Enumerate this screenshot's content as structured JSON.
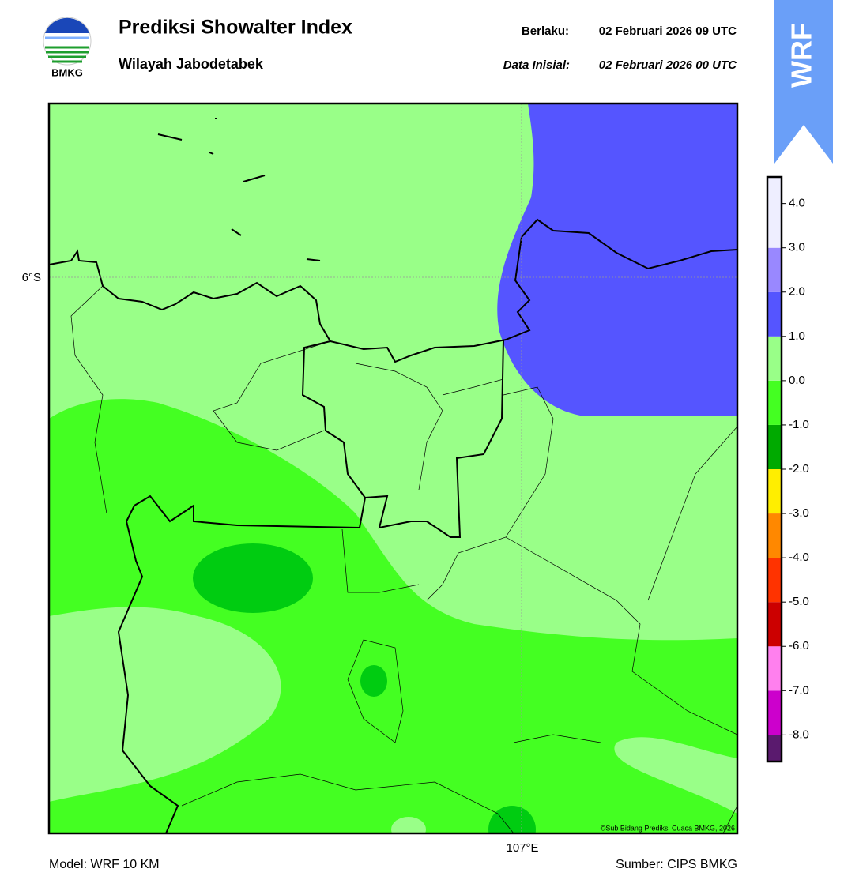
{
  "header": {
    "logo_text": "BMKG",
    "title": "Prediksi Showalter Index",
    "subtitle": "Wilayah Jabodetabek",
    "valid_label": "Berlaku:",
    "valid_time": "02 Februari 2026 09 UTC",
    "init_label": "Data Inisial:",
    "init_time": "02 Februari 2026 00 UTC",
    "badge": "WRF"
  },
  "map": {
    "lat_label": "6°S",
    "lon_label": "107°E",
    "credit": "©Sub Bidang Prediksi Cuaca BMKG, 2026"
  },
  "colorbar": {
    "lim": [
      -8.6,
      4.6
    ],
    "bounds": [
      -8.6,
      -8,
      -7,
      -6,
      -5,
      -4,
      -3,
      -2,
      -1,
      0,
      1,
      2,
      3,
      4.6
    ],
    "colors": [
      "#5a1a6e",
      "#cc00cc",
      "#ff80ee",
      "#cc0000",
      "#ff3300",
      "#ff8800",
      "#ffee00",
      "#00aa00",
      "#44ff22",
      "#99ff88",
      "#5555ff",
      "#9988ff",
      "#eeeeff"
    ],
    "ticks": [
      {
        "value": 4,
        "label": "4.0"
      },
      {
        "value": 3,
        "label": "3.0"
      },
      {
        "value": 2,
        "label": "2.0"
      },
      {
        "value": 1,
        "label": "1.0"
      },
      {
        "value": 0,
        "label": "0.0"
      },
      {
        "value": -1,
        "label": "-1.0"
      },
      {
        "value": -2,
        "label": "-2.0"
      },
      {
        "value": -3,
        "label": "-3.0"
      },
      {
        "value": -4,
        "label": "-4.0"
      },
      {
        "value": -5,
        "label": "-5.0"
      },
      {
        "value": -6,
        "label": "-6.0"
      },
      {
        "value": -7,
        "label": "-7.0"
      },
      {
        "value": -8,
        "label": "-8.0"
      }
    ]
  },
  "footer": {
    "model": "Model: WRF 10 KM",
    "source": "Sumber: CIPS BMKG"
  }
}
